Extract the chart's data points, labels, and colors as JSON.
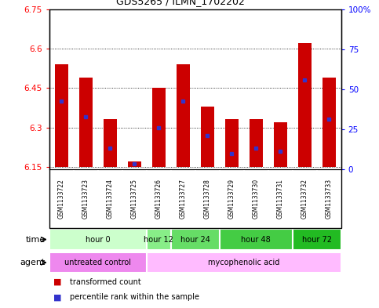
{
  "title": "GDS5265 / ILMN_1702202",
  "samples": [
    "GSM1133722",
    "GSM1133723",
    "GSM1133724",
    "GSM1133725",
    "GSM1133726",
    "GSM1133727",
    "GSM1133728",
    "GSM1133729",
    "GSM1133730",
    "GSM1133731",
    "GSM1133732",
    "GSM1133733"
  ],
  "bar_tops": [
    6.54,
    6.49,
    6.33,
    6.17,
    6.45,
    6.54,
    6.38,
    6.33,
    6.33,
    6.32,
    6.62,
    6.49
  ],
  "bar_bottoms": [
    6.15,
    6.15,
    6.15,
    6.15,
    6.15,
    6.15,
    6.15,
    6.15,
    6.15,
    6.15,
    6.15,
    6.15
  ],
  "blue_positions": [
    6.4,
    6.34,
    6.22,
    6.16,
    6.3,
    6.4,
    6.27,
    6.2,
    6.22,
    6.21,
    6.48,
    6.33
  ],
  "ylim_left": [
    6.14,
    6.75
  ],
  "ylim_right": [
    0,
    100
  ],
  "yticks_left": [
    6.15,
    6.3,
    6.45,
    6.6,
    6.75
  ],
  "yticks_right": [
    0,
    25,
    50,
    75,
    100
  ],
  "ytick_labels_left": [
    "6.15",
    "6.3",
    "6.45",
    "6.6",
    "6.75"
  ],
  "ytick_labels_right": [
    "0",
    "25",
    "50",
    "75",
    "100%"
  ],
  "bar_color": "#cc0000",
  "blue_color": "#3333cc",
  "plot_bg": "#ffffff",
  "time_groups": [
    {
      "label": "hour 0",
      "samples": [
        0,
        1,
        2,
        3
      ],
      "color": "#ccffcc"
    },
    {
      "label": "hour 12",
      "samples": [
        4
      ],
      "color": "#88ee88"
    },
    {
      "label": "hour 24",
      "samples": [
        5,
        6
      ],
      "color": "#66dd66"
    },
    {
      "label": "hour 48",
      "samples": [
        7,
        8,
        9
      ],
      "color": "#44cc44"
    },
    {
      "label": "hour 72",
      "samples": [
        10,
        11
      ],
      "color": "#22bb22"
    }
  ],
  "agent_groups": [
    {
      "label": "untreated control",
      "samples": [
        0,
        1,
        2,
        3
      ],
      "color": "#ee88ee"
    },
    {
      "label": "mycophenolic acid",
      "samples": [
        4,
        5,
        6,
        7,
        8,
        9,
        10,
        11
      ],
      "color": "#ffbbff"
    }
  ],
  "legend_items": [
    {
      "label": "transformed count",
      "color": "#cc0000"
    },
    {
      "label": "percentile rank within the sample",
      "color": "#3333cc"
    }
  ],
  "bar_width": 0.55,
  "sample_bg_color": "#cccccc",
  "row_label_time": "time",
  "row_label_agent": "agent"
}
